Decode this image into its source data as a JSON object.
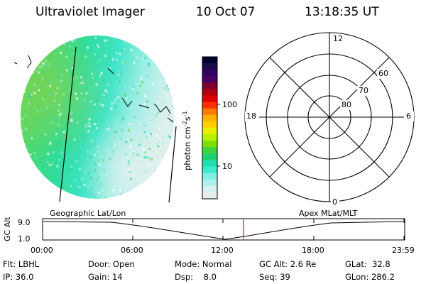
{
  "header": {
    "instrument": "Ultraviolet Imager",
    "date": "10 Oct 07",
    "time": "13:18:35 UT"
  },
  "colorbar": {
    "label": "photon cm",
    "exp1": "-2",
    "mid": "s",
    "exp2": "-1",
    "ticks": [
      "100",
      "10"
    ],
    "colors": [
      "#000030",
      "#1a0a4a",
      "#300060",
      "#4b0060",
      "#7a0030",
      "#b00010",
      "#e00000",
      "#ff3000",
      "#ff7a00",
      "#ffb000",
      "#ffd000",
      "#e6f000",
      "#b5f000",
      "#7ae000",
      "#40d040",
      "#20d070",
      "#20e0b0",
      "#40e8d0",
      "#80f0e0",
      "#b0f0ec",
      "#d8f0f0",
      "#e8eeee"
    ]
  },
  "polar": {
    "lat_labels": [
      "60",
      "70",
      "80"
    ],
    "mlt_labels": {
      "top": "12",
      "left": "18",
      "right": "6",
      "bottom": "0"
    }
  },
  "timeline": {
    "left_label": "Geographic Lat/Lon",
    "right_label": "Apex MLat/MLT",
    "axis_title": "GC Alt",
    "y_ticks": [
      "9.0",
      "1.0"
    ],
    "x_ticks": [
      "00:00",
      "06:00",
      "12:00",
      "18:00",
      "23:59"
    ],
    "marker_time": "13:18:35"
  },
  "info": [
    {
      "label": "Flt:",
      "value": "LBHL"
    },
    {
      "label": "IP:",
      "value": "36.0"
    },
    {
      "label": "Door:",
      "value": "Open"
    },
    {
      "label": "Gain:",
      "value": "14"
    },
    {
      "label": "Mode:",
      "value": "Normal"
    },
    {
      "label": "Dsp:",
      "value": "8.0"
    },
    {
      "label": "GC Alt:",
      "value": "2.6 Re"
    },
    {
      "label": "Seq:",
      "value": "39"
    },
    {
      "label": "GLat:",
      "value": "32.8"
    },
    {
      "label": "GLon:",
      "value": "286.2"
    }
  ]
}
